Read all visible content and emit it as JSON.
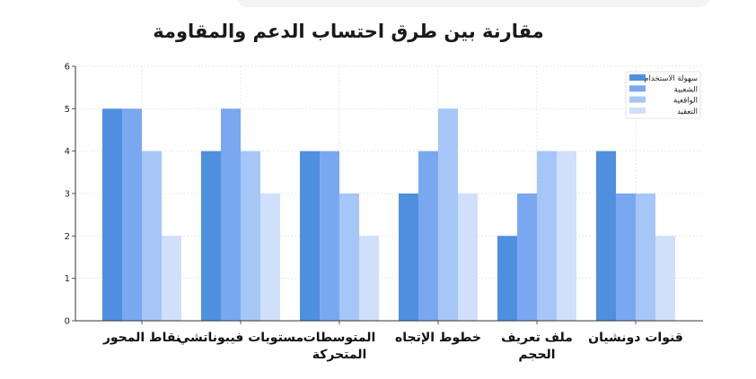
{
  "chart_data": {
    "type": "bar",
    "title": "مقارنة بين طرق احتساب الدعم والمقاومة",
    "xlabel": "",
    "ylabel": "",
    "categories": [
      [
        "نقاط المحور"
      ],
      [
        "مستويات فيبوناتشي"
      ],
      [
        "المتوسطات",
        "المتحركة"
      ],
      [
        "خطوط الإتجاه"
      ],
      [
        "ملف تعريف",
        "الحجم"
      ],
      [
        "قنوات دونشيان"
      ]
    ],
    "series": [
      {
        "name": "سهولة الاستخدام",
        "color": "#4f8fdf",
        "values": [
          5,
          4,
          4,
          3,
          2,
          4
        ]
      },
      {
        "name": "الشعبية",
        "color": "#7aa8f0",
        "values": [
          5,
          5,
          4,
          4,
          3,
          3
        ]
      },
      {
        "name": "الواقعية",
        "color": "#a6c6f7",
        "values": [
          4,
          4,
          3,
          5,
          4,
          3
        ]
      },
      {
        "name": "التعقيد",
        "color": "#d0e0fb",
        "values": [
          2,
          3,
          2,
          3,
          4,
          2
        ]
      }
    ],
    "ylim": [
      0,
      6
    ],
    "yticks": [
      "0",
      "1",
      "2",
      "3",
      "4",
      "5",
      "6"
    ],
    "grid": true,
    "legend_position": "top-right"
  }
}
